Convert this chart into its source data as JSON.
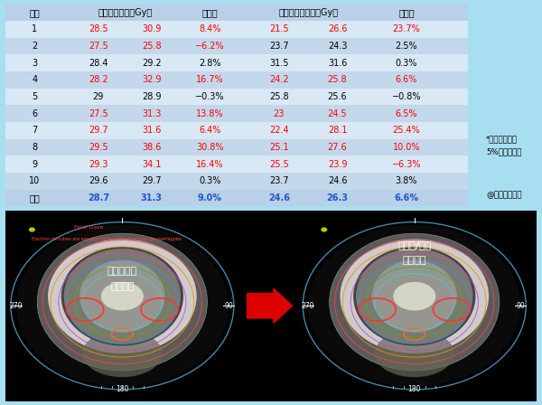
{
  "bg_color": "#a8dff0",
  "header_bg": "#b8d0e8",
  "row_bg_even": "#d8e8f4",
  "row_bg_odd": "#c4d8ec",
  "rows": [
    {
      "case": "1",
      "sc_pre": "28.5",
      "sc_post": "30.9",
      "sc_change": "8.4%",
      "pg_pre": "21.5",
      "pg_post": "26.6",
      "pg_change": "23.7%",
      "sc_red": true,
      "sc_ch_red": true,
      "pg_red": true,
      "pg_ch_red": true
    },
    {
      "case": "2",
      "sc_pre": "27.5",
      "sc_post": "25.8",
      "sc_change": "−6.2%",
      "pg_pre": "23.7",
      "pg_post": "24.3",
      "pg_change": "2.5%",
      "sc_red": true,
      "sc_ch_red": true,
      "pg_red": false,
      "pg_ch_red": false
    },
    {
      "case": "3",
      "sc_pre": "28.4",
      "sc_post": "29.2",
      "sc_change": "2.8%",
      "pg_pre": "31.5",
      "pg_post": "31.6",
      "pg_change": "0.3%",
      "sc_red": false,
      "sc_ch_red": false,
      "pg_red": false,
      "pg_ch_red": false
    },
    {
      "case": "4",
      "sc_pre": "28.2",
      "sc_post": "32.9",
      "sc_change": "16.7%",
      "pg_pre": "24.2",
      "pg_post": "25.8",
      "pg_change": "6.6%",
      "sc_red": true,
      "sc_ch_red": true,
      "pg_red": true,
      "pg_ch_red": true
    },
    {
      "case": "5",
      "sc_pre": "29",
      "sc_post": "28.9",
      "sc_change": "−0.3%",
      "pg_pre": "25.8",
      "pg_post": "25.6",
      "pg_change": "−0.8%",
      "sc_red": false,
      "sc_ch_red": false,
      "pg_red": false,
      "pg_ch_red": false
    },
    {
      "case": "6",
      "sc_pre": "27.5",
      "sc_post": "31.3",
      "sc_change": "13.8%",
      "pg_pre": "23",
      "pg_post": "24.5",
      "pg_change": "6.5%",
      "sc_red": true,
      "sc_ch_red": true,
      "pg_red": true,
      "pg_ch_red": true
    },
    {
      "case": "7",
      "sc_pre": "29.7",
      "sc_post": "31.6",
      "sc_change": "6.4%",
      "pg_pre": "22.4",
      "pg_post": "28.1",
      "pg_change": "25.4%",
      "sc_red": true,
      "sc_ch_red": true,
      "pg_red": true,
      "pg_ch_red": true
    },
    {
      "case": "8",
      "sc_pre": "29.5",
      "sc_post": "38.6",
      "sc_change": "30.8%",
      "pg_pre": "25.1",
      "pg_post": "27.6",
      "pg_change": "10.0%",
      "sc_red": true,
      "sc_ch_red": true,
      "pg_red": true,
      "pg_ch_red": true
    },
    {
      "case": "9",
      "sc_pre": "29.3",
      "sc_post": "34.1",
      "sc_change": "16.4%",
      "pg_pre": "25.5",
      "pg_post": "23.9",
      "pg_change": "−6.3%",
      "sc_red": true,
      "sc_ch_red": true,
      "pg_red": true,
      "pg_ch_red": true
    },
    {
      "case": "10",
      "sc_pre": "29.6",
      "sc_post": "29.7",
      "sc_change": "0.3%",
      "pg_pre": "23.7",
      "pg_post": "24.6",
      "pg_change": "3.8%",
      "sc_red": false,
      "sc_ch_red": false,
      "pg_red": false,
      "pg_ch_red": false
    }
  ],
  "avg": {
    "case": "平均",
    "sc_pre": "28.7",
    "sc_post": "31.3",
    "sc_change": "9.0%",
    "pg_pre": "24.6",
    "pg_post": "26.3",
    "pg_change": "6.6%"
  },
  "hdr1": "症例",
  "hdr2": "脏高最大線量（Gy）",
  "hdr3": "変化率",
  "hdr4": "耳下腺平均線量（Gy）",
  "hdr5": "変化率",
  "note1": "*赤字は変化率",
  "note2": "5%以上の症例",
  "note3": "@東北大学病院",
  "lbl_left1": "耳下腺萎縮",
  "lbl_left2": "体重減少",
  "lbl_right1": "耳下腺/脏高",
  "lbl_right2": "線量増加",
  "red": "#ff0000",
  "blue": "#2255cc",
  "black": "#000000",
  "white": "#ffffff"
}
